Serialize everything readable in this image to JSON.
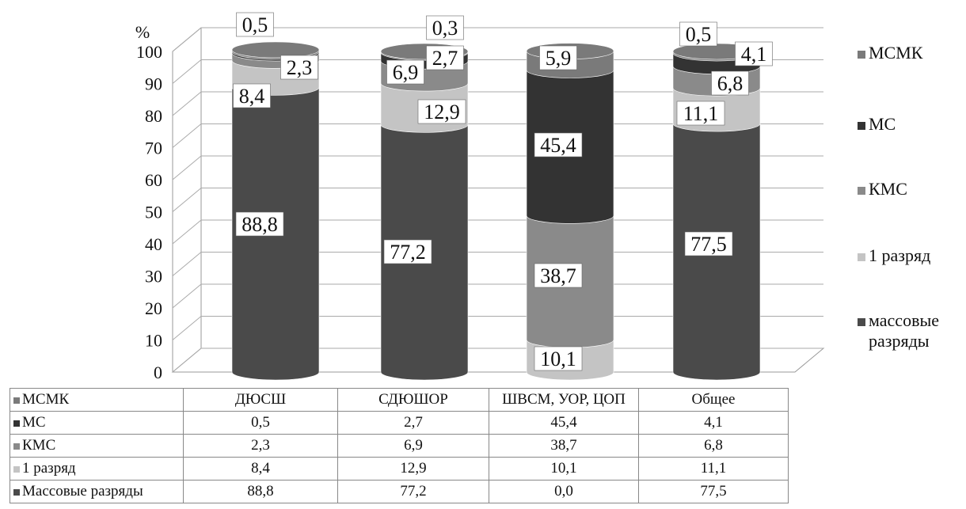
{
  "chart_data": {
    "type": "bar",
    "stacked": true,
    "three_d": true,
    "ylabel": "%",
    "ylim": [
      0,
      100
    ],
    "yticks": [
      0,
      10,
      20,
      30,
      40,
      50,
      60,
      70,
      80,
      90,
      100
    ],
    "grid": true,
    "legend_position": "right",
    "categories": [
      "ДЮСШ",
      "СДЮШОР",
      "ШВСМ, УОР, ЦОП",
      "Общее"
    ],
    "series": [
      {
        "name": "массовые разряды",
        "table_name": "Массовые разряды",
        "values": [
          88.8,
          77.2,
          0.0,
          77.5
        ],
        "color": "#4a4a4a"
      },
      {
        "name": "1 разряд",
        "table_name": "1 разряд",
        "values": [
          8.4,
          12.9,
          10.1,
          11.1
        ],
        "color": "#c4c4c4"
      },
      {
        "name": "КМС",
        "table_name": "КМС",
        "values": [
          2.3,
          6.9,
          38.7,
          6.8
        ],
        "color": "#8a8a8a"
      },
      {
        "name": "МС",
        "table_name": "МС",
        "values": [
          0.5,
          2.7,
          45.4,
          4.1
        ],
        "color": "#333333"
      },
      {
        "name": "МСМК",
        "table_name": "МСМК",
        "values": [
          0.5,
          0.3,
          5.9,
          0.5
        ],
        "color": "#7a7a7a"
      }
    ],
    "bar_labels": [
      [
        "88,8",
        "8,4",
        "2,3",
        "0,5"
      ],
      [
        "77,2",
        "12,9",
        "6,9",
        "2,7",
        "0,3"
      ],
      [
        "10,1",
        "38,7",
        "45,4",
        "5,9"
      ],
      [
        "77,5",
        "11,1",
        "6,8",
        "4,1",
        "0,5"
      ]
    ],
    "legend": [
      "МСМК",
      "МС",
      "КМС",
      "1 разряд",
      "массовые разряды"
    ]
  },
  "table": {
    "headers": [
      "ДЮСШ",
      "СДЮШОР",
      "ШВСМ, УОР, ЦОП",
      "Общее"
    ],
    "rows": [
      {
        "label": "МС",
        "values": [
          "0,5",
          "2,7",
          "45,4",
          "4,1"
        ]
      },
      {
        "label": "КМС",
        "values": [
          "2,3",
          "6,9",
          "38,7",
          "6,8"
        ]
      },
      {
        "label": "1 разряд",
        "values": [
          "8,4",
          "12,9",
          "10,1",
          "11,1"
        ]
      },
      {
        "label": "Массовые разряды",
        "values": [
          "88,8",
          "77,2",
          "0,0",
          "77,5"
        ]
      }
    ],
    "corner_label": "МСМК"
  }
}
